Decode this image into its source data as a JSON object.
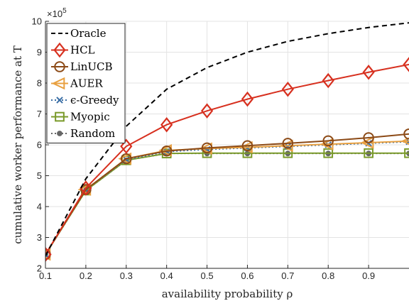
{
  "chart_data": {
    "type": "line",
    "xlabel": "availability probability ρ",
    "ylabel": "cumulative worker performance at T",
    "x_ticks": [
      "0.1",
      "0.2",
      "0.3",
      "0.4",
      "0.5",
      "0.6",
      "0.7",
      "0.8",
      "0.9"
    ],
    "y_ticks": [
      "2",
      "3",
      "4",
      "5",
      "6",
      "7",
      "8",
      "9",
      "10"
    ],
    "y_multiplier": "×10",
    "y_multiplier_exp": "5",
    "xlim": [
      0.1,
      1.0
    ],
    "ylim": [
      2,
      10
    ],
    "grid": true,
    "legend_position": "top-left",
    "x": [
      0.1,
      0.2,
      0.3,
      0.4,
      0.5,
      0.6,
      0.7,
      0.8,
      0.9,
      1.0
    ],
    "series": [
      {
        "name": "Oracle",
        "color": "#000000",
        "marker": "none",
        "dash": "7,5",
        "values": [
          2.4,
          4.9,
          6.6,
          7.8,
          8.5,
          9.0,
          9.35,
          9.6,
          9.8,
          9.95
        ]
      },
      {
        "name": "HCL",
        "color": "#d7301f",
        "marker": "diamond",
        "dash": "",
        "values": [
          2.45,
          4.6,
          5.95,
          6.65,
          7.1,
          7.48,
          7.8,
          8.08,
          8.35,
          8.6
        ]
      },
      {
        "name": "LinUCB",
        "color": "#8c4a16",
        "marker": "circle",
        "dash": "",
        "values": [
          2.45,
          4.55,
          5.55,
          5.8,
          5.9,
          5.97,
          6.05,
          6.13,
          6.23,
          6.35
        ]
      },
      {
        "name": "AUER",
        "color": "#e8a040",
        "marker": "triangle-left",
        "dash": "",
        "values": [
          2.45,
          4.55,
          5.55,
          5.82,
          5.88,
          5.92,
          5.97,
          6.02,
          6.07,
          6.12
        ]
      },
      {
        "name": "ϵ-Greedy",
        "color": "#3a6ea5",
        "marker": "x",
        "dash": "2,3",
        "values": [
          2.45,
          4.55,
          5.52,
          5.78,
          5.85,
          5.9,
          5.95,
          6.0,
          6.05,
          6.1
        ]
      },
      {
        "name": "Myopic",
        "color": "#7a9a2a",
        "marker": "square",
        "dash": "",
        "values": [
          2.45,
          4.52,
          5.5,
          5.72,
          5.73,
          5.73,
          5.73,
          5.73,
          5.73,
          5.73
        ]
      },
      {
        "name": "Random",
        "color": "#666666",
        "marker": "dot",
        "dash": "2,3",
        "values": [
          2.45,
          4.52,
          5.5,
          5.72,
          5.72,
          5.72,
          5.72,
          5.72,
          5.72,
          5.72
        ]
      }
    ]
  }
}
